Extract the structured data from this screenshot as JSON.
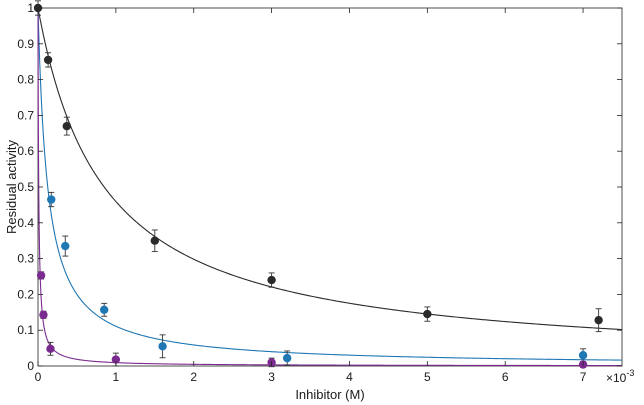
{
  "chart_data": {
    "type": "scatter",
    "title": "",
    "xlabel": "Inhibitor (M)",
    "ylabel": "Residual activity",
    "x_multiplier_label": "×10",
    "x_multiplier_exponent": "-3",
    "x_scale_factor": 0.001,
    "xlim": [
      0,
      0.0075
    ],
    "ylim": [
      0,
      1
    ],
    "x_ticks": [
      0,
      0.001,
      0.002,
      0.003,
      0.004,
      0.005,
      0.006,
      0.007
    ],
    "x_tick_labels": [
      "0",
      "1",
      "2",
      "3",
      "4",
      "5",
      "6",
      "7"
    ],
    "y_ticks": [
      0,
      0.1,
      0.2,
      0.3,
      0.4,
      0.5,
      0.6,
      0.7,
      0.8,
      0.9,
      1
    ],
    "y_tick_labels": [
      "0",
      "0.1",
      "0.2",
      "0.3",
      "0.4",
      "0.5",
      "0.6",
      "0.7",
      "0.8",
      "0.9",
      "1"
    ],
    "grid": false,
    "legend": "none",
    "series": [
      {
        "color": "#2b2b2b",
        "ic50": 0.00085,
        "points": [
          {
            "x": 0,
            "y": 1.0,
            "err": 0.02
          },
          {
            "x": 0.00013,
            "y": 0.855,
            "err": 0.02
          },
          {
            "x": 0.00037,
            "y": 0.67,
            "err": 0.025
          },
          {
            "x": 0.0015,
            "y": 0.35,
            "err": 0.03
          },
          {
            "x": 0.003,
            "y": 0.24,
            "err": 0.02
          },
          {
            "x": 0.005,
            "y": 0.145,
            "err": 0.02
          },
          {
            "x": 0.0072,
            "y": 0.128,
            "err": 0.032
          }
        ]
      },
      {
        "color": "#1f77b4",
        "ic50": 0.000125,
        "points": [
          {
            "x": 0.00017,
            "y": 0.465,
            "err": 0.02
          },
          {
            "x": 0.00035,
            "y": 0.335,
            "err": 0.028
          },
          {
            "x": 0.00085,
            "y": 0.157,
            "err": 0.018
          },
          {
            "x": 0.0016,
            "y": 0.055,
            "err": 0.032
          },
          {
            "x": 0.0032,
            "y": 0.022,
            "err": 0.02
          },
          {
            "x": 0.007,
            "y": 0.03,
            "err": 0.018
          }
        ]
      },
      {
        "color": "#7b2a8f",
        "ic50": 9.5e-06,
        "points": [
          {
            "x": 4e-05,
            "y": 0.253,
            "err": 0.01
          },
          {
            "x": 7e-05,
            "y": 0.143,
            "err": 0.01
          },
          {
            "x": 0.00016,
            "y": 0.048,
            "err": 0.018
          },
          {
            "x": 0.001,
            "y": 0.018,
            "err": 0.018
          },
          {
            "x": 0.003,
            "y": 0.01,
            "err": 0.012
          },
          {
            "x": 0.007,
            "y": 0.004,
            "err": 0.008
          }
        ]
      }
    ]
  }
}
